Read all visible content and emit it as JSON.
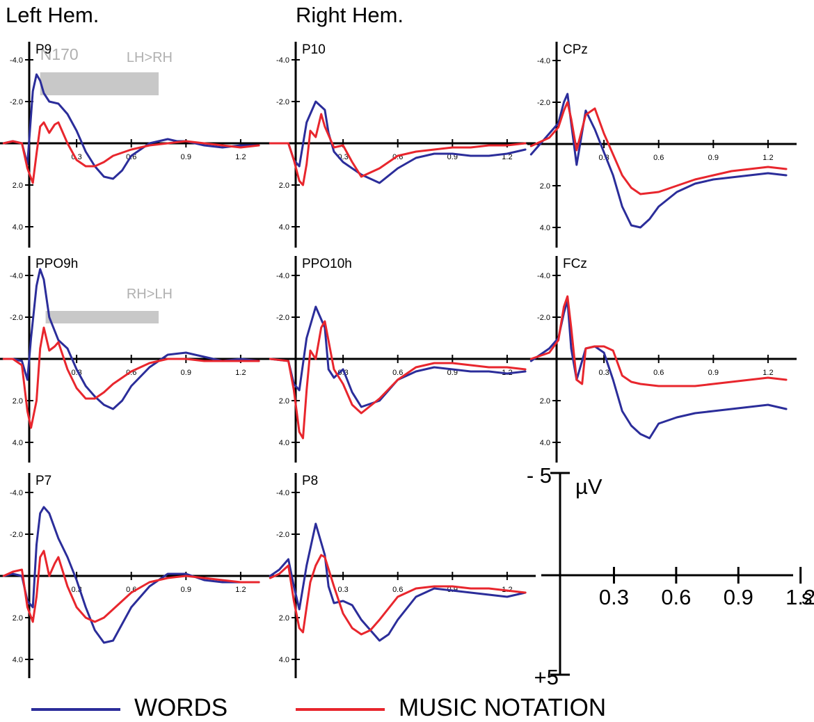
{
  "header": {
    "left_hem": "Left Hem.",
    "right_hem": "Right Hem."
  },
  "colors": {
    "words": "#2b2d9a",
    "music": "#e8262d",
    "significance_bar": "#c8c8c8",
    "axis": "#000000"
  },
  "legend": {
    "words_label": "WORDS",
    "music_label": "MUSIC NOTATION"
  },
  "scale": {
    "neg_label": "- 5",
    "pos_label": "+5",
    "unit": "µV",
    "x_ticks": [
      "0.3",
      "0.6",
      "0.9",
      "1.2"
    ],
    "x_unit": "s"
  },
  "chart_data": [
    {
      "type": "line",
      "id": "P9",
      "title": "P9",
      "y_ticks": [
        "-4.0",
        "-2.0",
        "2.0",
        "4.0"
      ],
      "x_ticks": [
        "0.3",
        "0.6",
        "0.9",
        "1.2"
      ],
      "ylim": [
        -5,
        5
      ],
      "xlim": [
        -0.1,
        1.3
      ],
      "y_inverted": true,
      "annotations": [
        {
          "text": "N170",
          "x": 0.1,
          "y": -4.0
        },
        {
          "text": "LH>RH",
          "x": 0.7,
          "y": -3.9
        }
      ],
      "significance_bar": {
        "x_start": 0.1,
        "x_end": 0.75,
        "y_top": -3.4,
        "y_bottom": -2.3,
        "spans_to": "P10"
      },
      "series": [
        {
          "name": "WORDS",
          "x": [
            -0.1,
            -0.05,
            0.0,
            0.03,
            0.06,
            0.08,
            0.1,
            0.12,
            0.15,
            0.2,
            0.25,
            0.3,
            0.35,
            0.4,
            0.45,
            0.5,
            0.55,
            0.6,
            0.7,
            0.8,
            0.85,
            0.9,
            1.0,
            1.1,
            1.2,
            1.3
          ],
          "y": [
            0.0,
            -0.1,
            0.0,
            1.0,
            -2.5,
            -3.3,
            -3.0,
            -2.4,
            -2.0,
            -1.9,
            -1.4,
            -0.6,
            0.4,
            1.1,
            1.6,
            1.7,
            1.3,
            0.6,
            0.0,
            -0.2,
            -0.1,
            -0.1,
            0.1,
            0.2,
            0.1,
            0.1
          ]
        },
        {
          "name": "MUSIC NOTATION",
          "x": [
            -0.1,
            -0.05,
            0.0,
            0.03,
            0.06,
            0.08,
            0.1,
            0.12,
            0.15,
            0.18,
            0.2,
            0.25,
            0.3,
            0.35,
            0.4,
            0.45,
            0.5,
            0.6,
            0.7,
            0.8,
            0.9,
            1.0,
            1.1,
            1.2,
            1.3
          ],
          "y": [
            0.0,
            -0.1,
            0.0,
            1.2,
            1.9,
            0.5,
            -0.8,
            -1.0,
            -0.5,
            -0.9,
            -1.0,
            0.0,
            0.8,
            1.1,
            1.1,
            0.9,
            0.6,
            0.3,
            0.1,
            0.0,
            -0.1,
            0.0,
            0.1,
            0.2,
            0.1
          ]
        }
      ]
    },
    {
      "type": "line",
      "id": "P10",
      "title": "P10",
      "y_ticks": [
        "-4.0",
        "-2.0",
        "2.0",
        "4.0"
      ],
      "x_ticks": [
        "0.3",
        "0.6",
        "0.9",
        "1.2"
      ],
      "ylim": [
        -5,
        5
      ],
      "xlim": [
        -0.1,
        1.3
      ],
      "y_inverted": true,
      "series": [
        {
          "name": "WORDS",
          "x": [
            -0.1,
            0.0,
            0.03,
            0.06,
            0.1,
            0.15,
            0.2,
            0.22,
            0.25,
            0.3,
            0.35,
            0.4,
            0.5,
            0.6,
            0.7,
            0.8,
            0.9,
            1.0,
            1.1,
            1.2,
            1.3
          ],
          "y": [
            0.0,
            0.0,
            0.8,
            1.1,
            -1.0,
            -2.0,
            -1.6,
            -0.5,
            0.4,
            0.9,
            1.2,
            1.5,
            1.9,
            1.2,
            0.7,
            0.5,
            0.5,
            0.6,
            0.6,
            0.5,
            0.3
          ]
        },
        {
          "name": "MUSIC NOTATION",
          "x": [
            -0.1,
            0.0,
            0.03,
            0.06,
            0.08,
            0.1,
            0.12,
            0.15,
            0.18,
            0.2,
            0.25,
            0.3,
            0.35,
            0.4,
            0.5,
            0.6,
            0.7,
            0.8,
            0.9,
            1.0,
            1.1,
            1.2,
            1.3
          ],
          "y": [
            0.0,
            0.0,
            0.8,
            1.8,
            2.0,
            1.0,
            -0.6,
            -0.3,
            -1.4,
            -0.8,
            0.2,
            0.1,
            0.9,
            1.6,
            1.2,
            0.6,
            0.4,
            0.3,
            0.2,
            0.2,
            0.1,
            0.1,
            0.0
          ]
        }
      ]
    },
    {
      "type": "line",
      "id": "CPz",
      "title": "CPz",
      "y_ticks": [
        "-4.0",
        "-2.0",
        "2.0",
        "4.0"
      ],
      "x_ticks": [
        "0.3",
        "0.6",
        "0.9",
        "1.2"
      ],
      "ylim": [
        -5,
        5
      ],
      "xlim": [
        -0.1,
        1.3
      ],
      "y_inverted": true,
      "series": [
        {
          "name": "WORDS",
          "x": [
            -0.1,
            0.0,
            0.05,
            0.08,
            0.1,
            0.12,
            0.15,
            0.2,
            0.25,
            0.3,
            0.35,
            0.4,
            0.45,
            0.5,
            0.55,
            0.6,
            0.7,
            0.8,
            0.9,
            1.0,
            1.1,
            1.2,
            1.3
          ],
          "y": [
            0.5,
            -0.5,
            -1.0,
            -2.0,
            -2.4,
            -1.0,
            1.0,
            -1.6,
            -0.7,
            0.4,
            1.5,
            3.0,
            3.9,
            4.0,
            3.6,
            3.0,
            2.3,
            1.9,
            1.7,
            1.6,
            1.5,
            1.4,
            1.5
          ]
        },
        {
          "name": "MUSIC NOTATION",
          "x": [
            -0.1,
            0.0,
            0.05,
            0.08,
            0.1,
            0.12,
            0.15,
            0.2,
            0.25,
            0.3,
            0.35,
            0.4,
            0.45,
            0.5,
            0.6,
            0.7,
            0.8,
            0.9,
            1.0,
            1.1,
            1.2,
            1.3
          ],
          "y": [
            0.1,
            -0.3,
            -0.8,
            -1.6,
            -2.0,
            -1.2,
            0.3,
            -1.4,
            -1.7,
            -0.5,
            0.5,
            1.5,
            2.1,
            2.4,
            2.3,
            2.0,
            1.7,
            1.5,
            1.3,
            1.2,
            1.1,
            1.2
          ]
        }
      ]
    },
    {
      "type": "line",
      "id": "PPO9h",
      "title": "PPO9h",
      "y_ticks": [
        "-4.0",
        "-2.0",
        "2.0",
        "4.0"
      ],
      "x_ticks": [
        "0.3",
        "0.6",
        "0.9",
        "1.2"
      ],
      "ylim": [
        -5,
        5
      ],
      "xlim": [
        -0.1,
        1.3
      ],
      "y_inverted": true,
      "annotations": [
        {
          "text": "RH>LH",
          "x": 0.7,
          "y": -2.9
        }
      ],
      "significance_bar": {
        "x_start": 0.13,
        "x_end": 0.75,
        "y_top": -2.3,
        "y_bottom": -1.7,
        "spans_to": "PPO10h"
      },
      "series": [
        {
          "name": "WORDS",
          "x": [
            -0.1,
            -0.05,
            0.0,
            0.03,
            0.05,
            0.08,
            0.1,
            0.12,
            0.15,
            0.2,
            0.25,
            0.3,
            0.35,
            0.4,
            0.45,
            0.5,
            0.55,
            0.6,
            0.7,
            0.8,
            0.9,
            1.0,
            1.1,
            1.2,
            1.3
          ],
          "y": [
            0.0,
            0.0,
            0.1,
            1.0,
            -1.0,
            -3.5,
            -4.3,
            -3.8,
            -2.0,
            -0.9,
            -0.5,
            0.5,
            1.3,
            1.8,
            2.2,
            2.4,
            2.0,
            1.3,
            0.4,
            -0.2,
            -0.3,
            -0.1,
            0.1,
            0.0,
            0.1
          ]
        },
        {
          "name": "MUSIC NOTATION",
          "x": [
            -0.1,
            -0.05,
            0.0,
            0.03,
            0.05,
            0.08,
            0.1,
            0.12,
            0.15,
            0.18,
            0.2,
            0.25,
            0.3,
            0.35,
            0.4,
            0.45,
            0.5,
            0.6,
            0.7,
            0.8,
            0.9,
            1.0,
            1.1,
            1.2,
            1.3
          ],
          "y": [
            0.0,
            0.0,
            0.3,
            2.5,
            3.3,
            2.0,
            -0.5,
            -1.5,
            -0.4,
            -0.6,
            -0.8,
            0.5,
            1.4,
            1.9,
            1.9,
            1.6,
            1.2,
            0.6,
            0.2,
            0.0,
            0.0,
            0.1,
            0.1,
            0.1,
            0.1
          ]
        }
      ]
    },
    {
      "type": "line",
      "id": "PPO10h",
      "title": "PPO10h",
      "y_ticks": [
        "-4.0",
        "-2.0",
        "2.0",
        "4.0"
      ],
      "x_ticks": [
        "0.3",
        "0.6",
        "0.9",
        "1.2"
      ],
      "ylim": [
        -5,
        5
      ],
      "xlim": [
        -0.1,
        1.3
      ],
      "y_inverted": true,
      "series": [
        {
          "name": "WORDS",
          "x": [
            -0.1,
            0.0,
            0.03,
            0.06,
            0.1,
            0.15,
            0.2,
            0.22,
            0.25,
            0.3,
            0.35,
            0.4,
            0.5,
            0.6,
            0.7,
            0.8,
            0.9,
            1.0,
            1.1,
            1.2,
            1.3
          ],
          "y": [
            0.0,
            0.1,
            1.2,
            1.5,
            -1.0,
            -2.5,
            -1.5,
            0.5,
            0.9,
            0.5,
            1.6,
            2.3,
            2.0,
            1.0,
            0.6,
            0.4,
            0.5,
            0.6,
            0.6,
            0.7,
            0.6
          ]
        },
        {
          "name": "MUSIC NOTATION",
          "x": [
            -0.1,
            0.0,
            0.03,
            0.06,
            0.08,
            0.1,
            0.12,
            0.15,
            0.18,
            0.2,
            0.25,
            0.3,
            0.35,
            0.4,
            0.5,
            0.6,
            0.7,
            0.8,
            0.9,
            1.0,
            1.1,
            1.2,
            1.3
          ],
          "y": [
            0.0,
            0.1,
            1.5,
            3.5,
            3.8,
            1.5,
            -0.4,
            0.0,
            -1.5,
            -1.8,
            0.5,
            1.2,
            2.2,
            2.6,
            1.9,
            1.0,
            0.4,
            0.2,
            0.2,
            0.3,
            0.4,
            0.4,
            0.5
          ]
        }
      ]
    },
    {
      "type": "line",
      "id": "FCz",
      "title": "FCz",
      "y_ticks": [
        "-4.0",
        "-2.0",
        "2.0",
        "4.0"
      ],
      "x_ticks": [
        "0.3",
        "0.6",
        "0.9",
        "1.2"
      ],
      "ylim": [
        -5,
        5
      ],
      "xlim": [
        -0.1,
        1.3
      ],
      "y_inverted": true,
      "series": [
        {
          "name": "WORDS",
          "x": [
            -0.1,
            0.0,
            0.05,
            0.08,
            0.1,
            0.12,
            0.15,
            0.2,
            0.25,
            0.3,
            0.35,
            0.4,
            0.45,
            0.5,
            0.55,
            0.6,
            0.7,
            0.8,
            0.9,
            1.0,
            1.1,
            1.2,
            1.3
          ],
          "y": [
            0.1,
            -0.5,
            -1.0,
            -2.2,
            -2.8,
            -0.5,
            1.0,
            -0.5,
            -0.6,
            -0.3,
            1.0,
            2.5,
            3.2,
            3.6,
            3.8,
            3.1,
            2.8,
            2.6,
            2.5,
            2.4,
            2.3,
            2.2,
            2.4
          ]
        },
        {
          "name": "MUSIC NOTATION",
          "x": [
            -0.1,
            0.0,
            0.05,
            0.08,
            0.1,
            0.12,
            0.15,
            0.18,
            0.2,
            0.25,
            0.3,
            0.35,
            0.4,
            0.45,
            0.5,
            0.6,
            0.7,
            0.8,
            0.9,
            1.0,
            1.1,
            1.2,
            1.3
          ],
          "y": [
            0.0,
            -0.3,
            -0.9,
            -2.5,
            -3.0,
            -1.5,
            1.0,
            1.2,
            -0.5,
            -0.6,
            -0.6,
            -0.4,
            0.8,
            1.1,
            1.2,
            1.3,
            1.3,
            1.3,
            1.2,
            1.1,
            1.0,
            0.9,
            1.0
          ]
        }
      ]
    },
    {
      "type": "line",
      "id": "P7",
      "title": "P7",
      "y_ticks": [
        "-4.0",
        "-2.0",
        "2.0",
        "4.0"
      ],
      "x_ticks": [
        "0.3",
        "0.6",
        "0.9",
        "1.2"
      ],
      "ylim": [
        -5,
        5
      ],
      "xlim": [
        -0.1,
        1.3
      ],
      "y_inverted": true,
      "series": [
        {
          "name": "WORDS",
          "x": [
            -0.1,
            -0.05,
            0.0,
            0.03,
            0.06,
            0.08,
            0.1,
            0.12,
            0.15,
            0.2,
            0.25,
            0.3,
            0.35,
            0.4,
            0.45,
            0.5,
            0.55,
            0.6,
            0.7,
            0.8,
            0.9,
            1.0,
            1.1,
            1.2,
            1.3
          ],
          "y": [
            0.0,
            -0.1,
            0.0,
            1.2,
            1.5,
            -1.5,
            -3.0,
            -3.3,
            -3.0,
            -1.8,
            -0.9,
            0.2,
            1.5,
            2.6,
            3.2,
            3.1,
            2.3,
            1.5,
            0.5,
            -0.1,
            -0.1,
            0.2,
            0.3,
            0.3,
            0.3
          ]
        },
        {
          "name": "MUSIC NOTATION",
          "x": [
            -0.1,
            -0.05,
            0.0,
            0.03,
            0.06,
            0.08,
            0.1,
            0.12,
            0.15,
            0.18,
            0.2,
            0.25,
            0.3,
            0.35,
            0.4,
            0.45,
            0.5,
            0.6,
            0.7,
            0.8,
            0.9,
            1.0,
            1.1,
            1.2,
            1.3
          ],
          "y": [
            0.0,
            -0.2,
            -0.3,
            1.5,
            2.2,
            1.0,
            -0.9,
            -1.2,
            0.0,
            -0.6,
            -0.9,
            0.5,
            1.5,
            2.0,
            2.2,
            2.0,
            1.6,
            0.8,
            0.3,
            0.1,
            0.0,
            0.1,
            0.2,
            0.3,
            0.3
          ]
        }
      ]
    },
    {
      "type": "line",
      "id": "P8",
      "title": "P8",
      "y_ticks": [
        "-4.0",
        "-2.0",
        "2.0",
        "4.0"
      ],
      "x_ticks": [
        "0.3",
        "0.6",
        "0.9",
        "1.2"
      ],
      "ylim": [
        -5,
        5
      ],
      "xlim": [
        -0.1,
        1.3
      ],
      "y_inverted": true,
      "series": [
        {
          "name": "WORDS",
          "x": [
            -0.1,
            -0.05,
            0.0,
            0.03,
            0.06,
            0.1,
            0.15,
            0.2,
            0.22,
            0.25,
            0.3,
            0.35,
            0.4,
            0.5,
            0.55,
            0.6,
            0.7,
            0.8,
            0.9,
            1.0,
            1.1,
            1.2,
            1.3
          ],
          "y": [
            0.0,
            -0.3,
            -0.8,
            0.5,
            1.6,
            -0.5,
            -2.5,
            -1.0,
            0.5,
            1.3,
            1.2,
            1.4,
            2.1,
            3.1,
            2.8,
            2.1,
            1.0,
            0.6,
            0.7,
            0.8,
            0.9,
            1.0,
            0.8
          ]
        },
        {
          "name": "MUSIC NOTATION",
          "x": [
            -0.1,
            -0.05,
            0.0,
            0.03,
            0.06,
            0.08,
            0.1,
            0.12,
            0.15,
            0.18,
            0.2,
            0.25,
            0.3,
            0.35,
            0.4,
            0.45,
            0.5,
            0.6,
            0.7,
            0.8,
            0.9,
            1.0,
            1.1,
            1.2,
            1.3
          ],
          "y": [
            0.1,
            -0.1,
            -0.5,
            1.2,
            2.5,
            2.7,
            1.5,
            0.3,
            -0.5,
            -1.0,
            -0.9,
            0.5,
            1.8,
            2.5,
            2.8,
            2.6,
            2.1,
            1.0,
            0.6,
            0.5,
            0.5,
            0.6,
            0.6,
            0.7,
            0.8
          ]
        }
      ]
    }
  ]
}
